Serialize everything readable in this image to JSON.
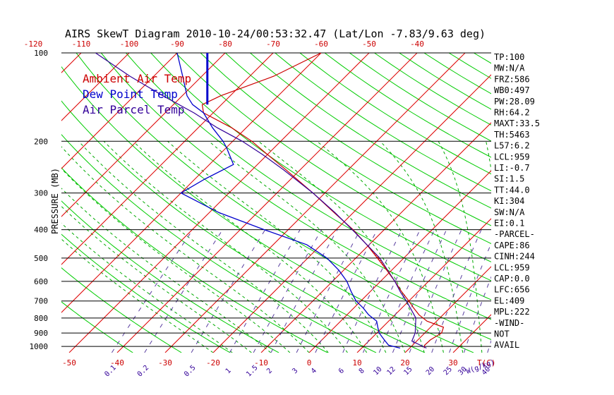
{
  "title": "AIRS SkewT Diagram 2010-10-24/00:53:32.47 (Lat/Lon -7.83/9.63 deg)",
  "colors": {
    "ambient": "#cc0000",
    "dewpoint": "#0000cc",
    "parcel": "#330099",
    "dry_adiabat": "#00cc00",
    "moist_adiabat": "#00aa00",
    "mixing_ratio": "#5a3fa0",
    "isotherm": "#dd0000",
    "isobar": "#000000",
    "tick_label": "#cc0000",
    "text": "#000000"
  },
  "chart_data": {
    "type": "line",
    "title": "AIRS SkewT Diagram 2010-10-24/00:53:32.47 (Lat/Lon -7.83/9.63 deg)",
    "ylabel": "PRESSURE (MB)",
    "xlabel": "T(C)",
    "mixing_ratio_unit": "W(g/kg)",
    "y_scale": "log",
    "ylim": [
      1050,
      100
    ],
    "x_bottom_range": [
      -55,
      35
    ],
    "x_top_range": [
      -125,
      -35
    ],
    "pressure_ticks": [
      100,
      200,
      300,
      400,
      500,
      600,
      700,
      800,
      900,
      1000
    ],
    "temp_ticks_bottom": [
      -50,
      -40,
      -30,
      -20,
      -10,
      0,
      10,
      20,
      30
    ],
    "temp_ticks_top": [
      -120,
      -110,
      -100,
      -90,
      -80,
      -70,
      -60,
      -50,
      -40
    ],
    "mixing_ratio_ticks": [
      "0.1",
      "0.2",
      "0.5",
      "1",
      "1.5",
      "2",
      "3",
      "4",
      "6",
      "8",
      "10",
      "12",
      "15",
      "20",
      "25",
      "30",
      "40"
    ],
    "legend": [
      "Ambient Air Temp",
      "Dew Point Temp",
      "Air Parcel Temp"
    ],
    "legend_position": "top-left",
    "series": [
      {
        "name": "Ambient Air Temp",
        "color": "#cc0000",
        "points": [
          [
            1013,
            23
          ],
          [
            990,
            22.5
          ],
          [
            950,
            22.6
          ],
          [
            900,
            23.5
          ],
          [
            860,
            22.7
          ],
          [
            820,
            18
          ],
          [
            780,
            15
          ],
          [
            740,
            12.5
          ],
          [
            700,
            10
          ],
          [
            650,
            6.5
          ],
          [
            600,
            3
          ],
          [
            550,
            -1
          ],
          [
            500,
            -5.5
          ],
          [
            450,
            -10.5
          ],
          [
            400,
            -16.5
          ],
          [
            350,
            -24
          ],
          [
            300,
            -32.5
          ],
          [
            250,
            -43
          ],
          [
            220,
            -50.5
          ],
          [
            200,
            -56
          ],
          [
            180,
            -63
          ],
          [
            160,
            -72
          ],
          [
            150,
            -74
          ],
          [
            140,
            -72
          ],
          [
            120,
            -65
          ],
          [
            100,
            -60
          ]
        ]
      },
      {
        "name": "Dew Point Temp",
        "color": "#0000cc",
        "points": [
          [
            1013,
            18
          ],
          [
            990,
            15
          ],
          [
            950,
            13
          ],
          [
            900,
            10.5
          ],
          [
            860,
            9
          ],
          [
            820,
            7.5
          ],
          [
            780,
            4.5
          ],
          [
            740,
            2
          ],
          [
            700,
            -1
          ],
          [
            650,
            -4
          ],
          [
            600,
            -7
          ],
          [
            550,
            -11
          ],
          [
            500,
            -16
          ],
          [
            450,
            -23
          ],
          [
            400,
            -35
          ],
          [
            350,
            -48
          ],
          [
            300,
            -60
          ],
          [
            270,
            -58
          ],
          [
            240,
            -55
          ],
          [
            210,
            -60
          ],
          [
            200,
            -62
          ],
          [
            180,
            -67
          ],
          [
            160,
            -72
          ],
          [
            150,
            -76
          ],
          [
            140,
            -79
          ],
          [
            120,
            -84
          ],
          [
            100,
            -90
          ]
        ]
      },
      {
        "name": "Air Parcel Temp",
        "color": "#330099",
        "points": [
          [
            1013,
            23.5
          ],
          [
            959,
            19
          ],
          [
            900,
            18
          ],
          [
            800,
            15
          ],
          [
            700,
            9.5
          ],
          [
            656,
            6.6
          ],
          [
            600,
            3
          ],
          [
            500,
            -5
          ],
          [
            409,
            -15.5
          ],
          [
            350,
            -23.8
          ],
          [
            300,
            -32.5
          ],
          [
            250,
            -43.5
          ],
          [
            222,
            -51
          ],
          [
            200,
            -58
          ],
          [
            180,
            -66
          ],
          [
            160,
            -74
          ],
          [
            140,
            -84
          ],
          [
            120,
            -95
          ],
          [
            100,
            -107
          ]
        ]
      }
    ]
  },
  "indices": [
    {
      "label": "TP:100"
    },
    {
      "label": "MW:N/A"
    },
    {
      "label": "FRZ:586"
    },
    {
      "label": "WB0:497"
    },
    {
      "label": "PW:28.09"
    },
    {
      "label": "RH:64.2"
    },
    {
      "label": "MAXT:33.5"
    },
    {
      "label": "TH:5463"
    },
    {
      "label": "L57:6.2"
    },
    {
      "label": "LCL:959"
    },
    {
      "label": "LI:-0.7"
    },
    {
      "label": "SI:1.5"
    },
    {
      "label": "TT:44.0"
    },
    {
      "label": "KI:304"
    },
    {
      "label": "SW:N/A"
    },
    {
      "label": "EI:0.1"
    },
    {
      "label": "-PARCEL-"
    },
    {
      "label": "CAPE:86"
    },
    {
      "label": "CINH:244"
    },
    {
      "label": "LCL:959"
    },
    {
      "label": "CAP:0.0"
    },
    {
      "label": "LFC:656"
    },
    {
      "label": "EL:409"
    },
    {
      "label": "MPL:222"
    },
    {
      "label": "-WIND-"
    },
    {
      "label": "NOT"
    },
    {
      "label": "AVAIL"
    }
  ]
}
